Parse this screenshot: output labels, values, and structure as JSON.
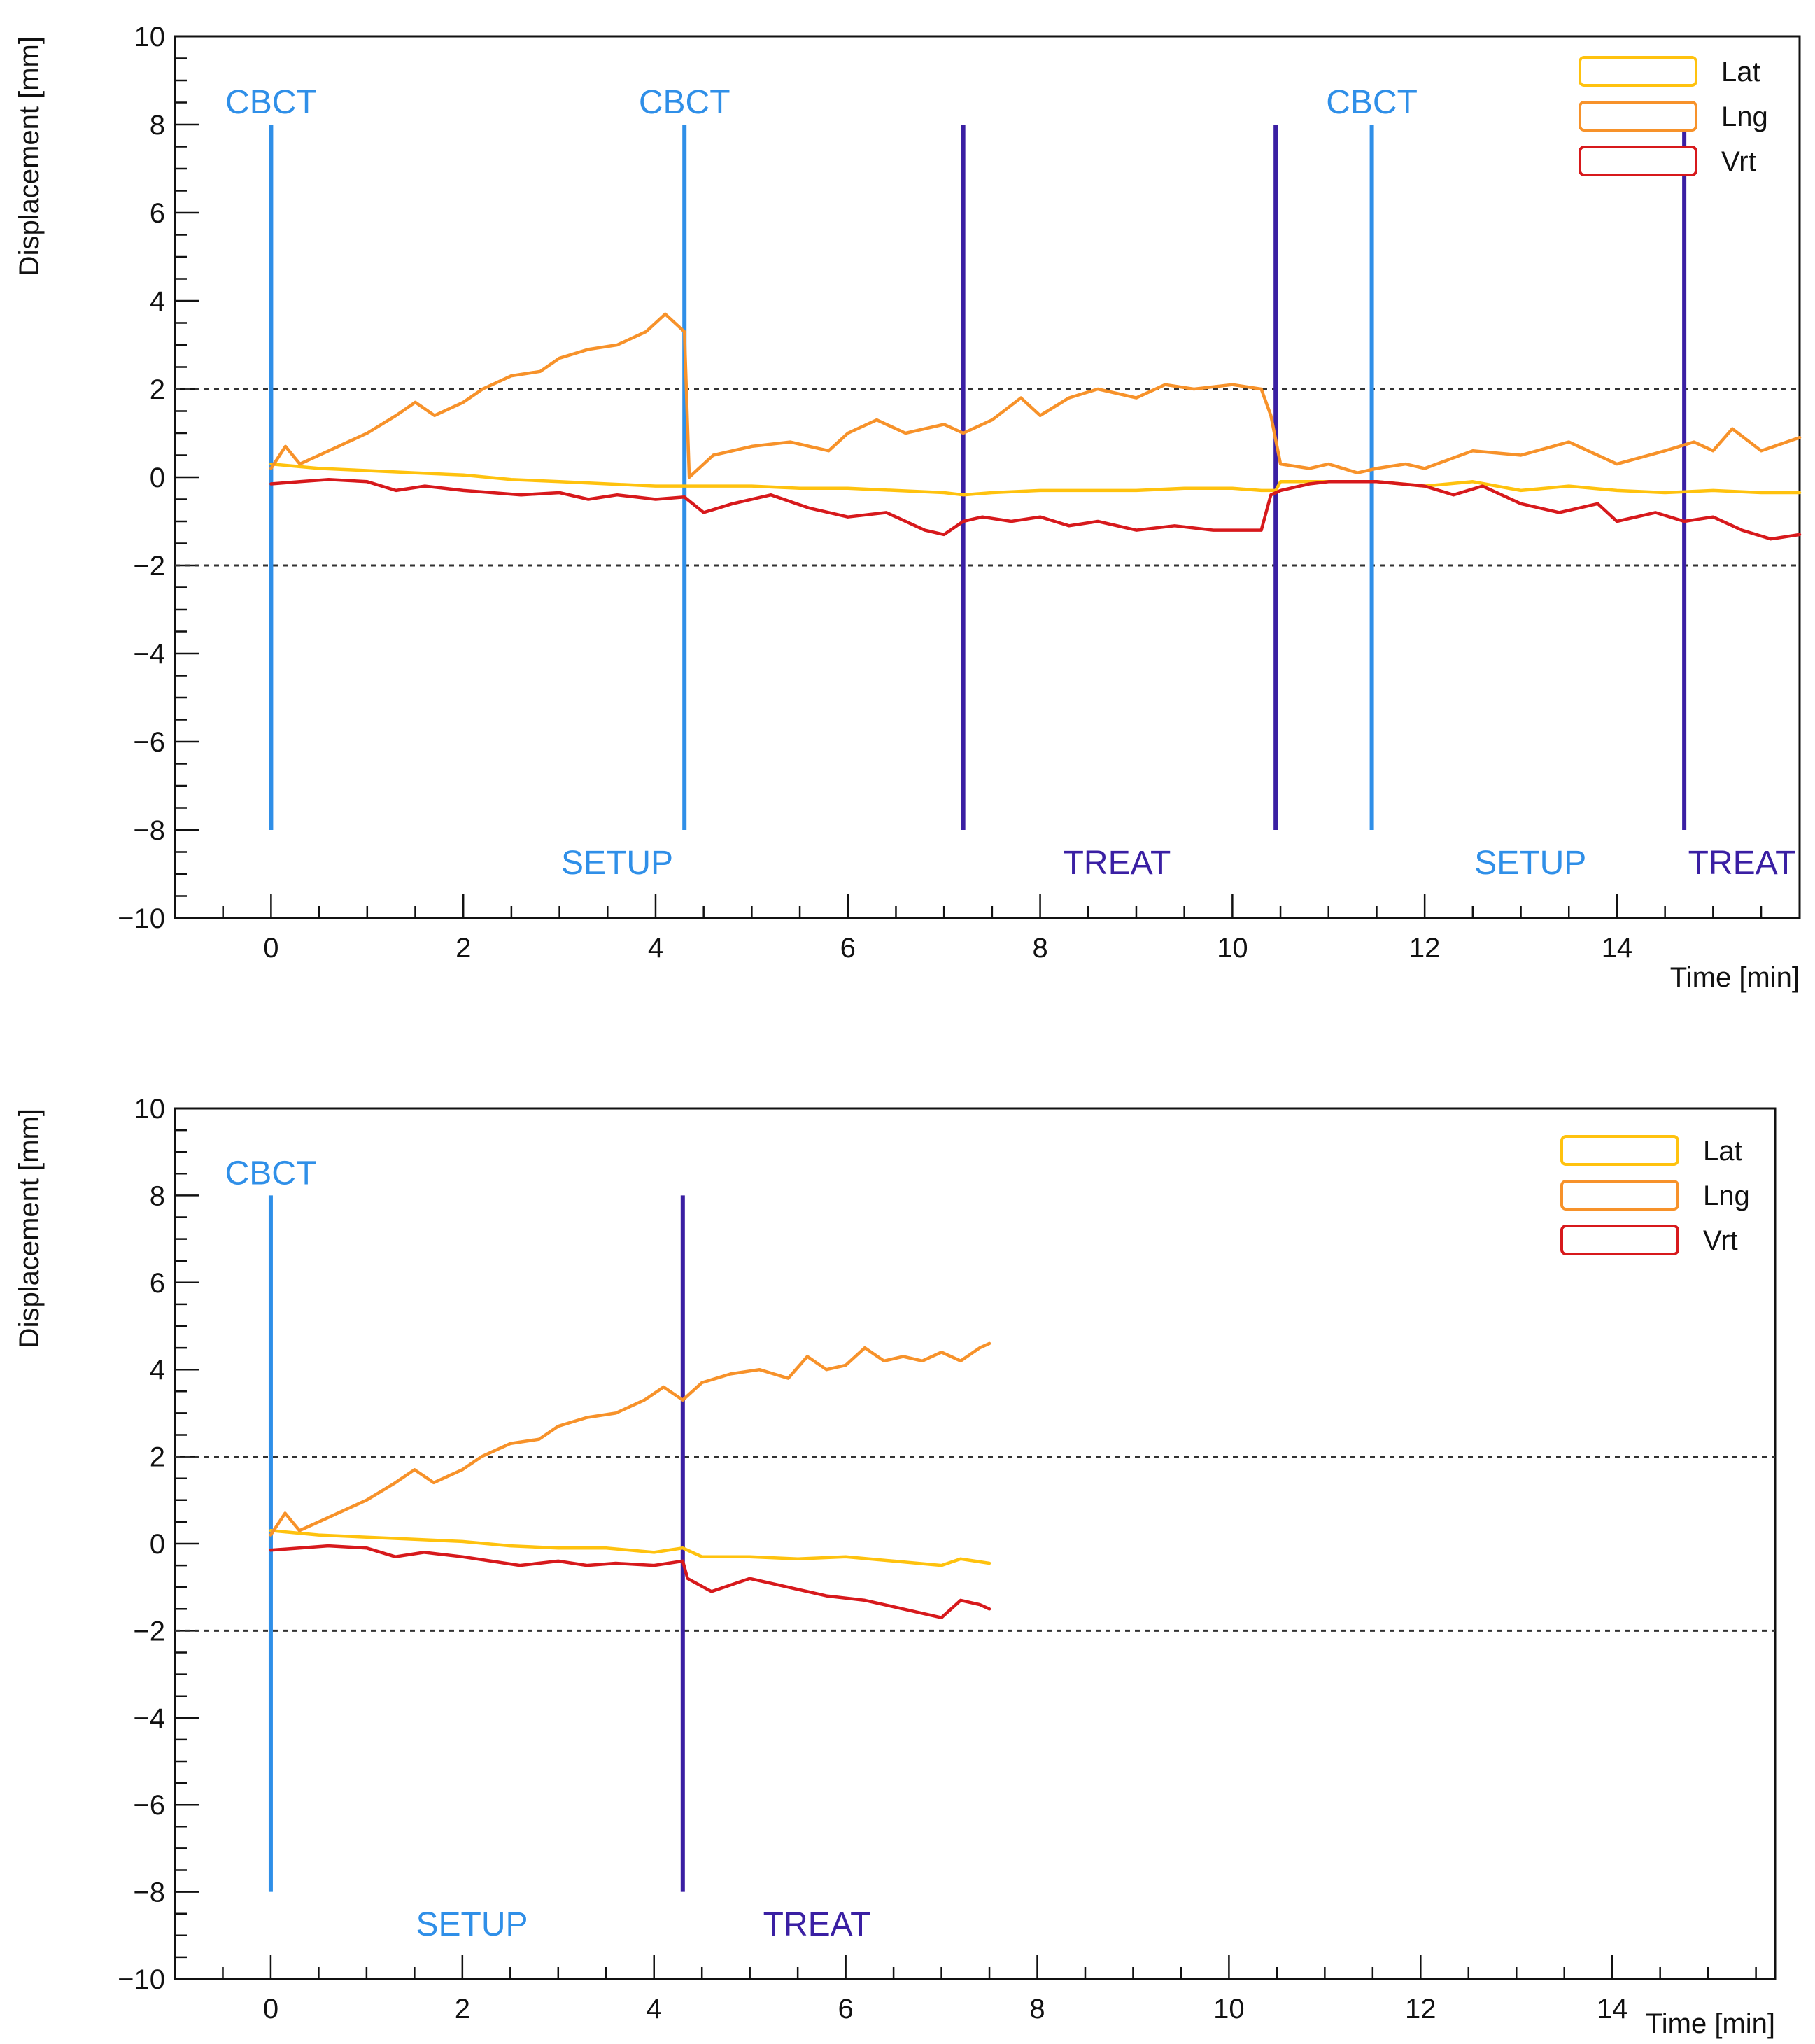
{
  "colors": {
    "lat": "#FFC20E",
    "lng": "#F7922A",
    "vrt": "#D7191C",
    "cbct_setup": "#2F8FE8",
    "treat": "#3A1FA3",
    "axis": "#111111",
    "threshold": "#333333"
  },
  "chart_data": [
    {
      "type": "line",
      "title": "",
      "xlabel": "Time [min]",
      "ylabel": "Displacement [mm]",
      "xlim": [
        -1.0,
        15.9
      ],
      "ylim": [
        -10,
        10
      ],
      "x_ticks": [
        "0",
        "2",
        "4",
        "6",
        "8",
        "10",
        "12",
        "14"
      ],
      "y_ticks": [
        "10",
        "8",
        "6",
        "4",
        "2",
        "0",
        "−2",
        "−4",
        "−6",
        "−8",
        "−10"
      ],
      "thresholds": [
        2,
        -2
      ],
      "events": [
        {
          "x": 0.0,
          "kind": "cbct",
          "label": "CBCT"
        },
        {
          "x": 4.3,
          "kind": "cbct",
          "label": "CBCT"
        },
        {
          "x": 7.2,
          "kind": "treat",
          "label": ""
        },
        {
          "x": 10.45,
          "kind": "treat",
          "label": ""
        },
        {
          "x": 11.45,
          "kind": "cbct",
          "label": "CBCT"
        },
        {
          "x": 14.7,
          "kind": "treat",
          "label": ""
        }
      ],
      "phase_labels": [
        {
          "x": 3.6,
          "kind": "cbct",
          "label": "SETUP"
        },
        {
          "x": 8.8,
          "kind": "treat",
          "label": "TREAT"
        },
        {
          "x": 13.1,
          "kind": "cbct",
          "label": "SETUP"
        },
        {
          "x": 15.3,
          "kind": "treat",
          "label": "TREAT"
        }
      ],
      "legend": [
        "Lat",
        "Lng",
        "Vrt"
      ],
      "series": [
        {
          "name": "Lat",
          "x": [
            0,
            0.5,
            1.0,
            1.5,
            2.0,
            2.5,
            3.0,
            3.5,
            4.0,
            4.3,
            4.35,
            5.0,
            5.5,
            6.0,
            6.5,
            7.0,
            7.2,
            7.5,
            8.0,
            8.5,
            9.0,
            9.5,
            10.0,
            10.3,
            10.45,
            10.5,
            11.0,
            11.5,
            12.0,
            12.5,
            13.0,
            13.5,
            14.0,
            14.5,
            15.0,
            15.5,
            15.9
          ],
          "values": [
            0.3,
            0.2,
            0.15,
            0.1,
            0.05,
            -0.05,
            -0.1,
            -0.15,
            -0.2,
            -0.2,
            -0.2,
            -0.2,
            -0.25,
            -0.25,
            -0.3,
            -0.35,
            -0.4,
            -0.35,
            -0.3,
            -0.3,
            -0.3,
            -0.25,
            -0.25,
            -0.3,
            -0.3,
            -0.1,
            -0.1,
            -0.1,
            -0.2,
            -0.1,
            -0.3,
            -0.2,
            -0.3,
            -0.35,
            -0.3,
            -0.35,
            -0.35
          ]
        },
        {
          "name": "Lng",
          "x": [
            0,
            0.15,
            0.3,
            0.5,
            0.8,
            1.0,
            1.3,
            1.5,
            1.7,
            2.0,
            2.2,
            2.5,
            2.8,
            3.0,
            3.3,
            3.6,
            3.9,
            4.1,
            4.3,
            4.35,
            4.6,
            5.0,
            5.4,
            5.8,
            6.0,
            6.3,
            6.6,
            7.0,
            7.2,
            7.5,
            7.8,
            8.0,
            8.3,
            8.6,
            9.0,
            9.3,
            9.6,
            10.0,
            10.3,
            10.4,
            10.5,
            10.8,
            11.0,
            11.3,
            11.5,
            11.8,
            12.0,
            12.5,
            13.0,
            13.5,
            14.0,
            14.5,
            14.8,
            15.0,
            15.2,
            15.5,
            15.9
          ],
          "values": [
            0.2,
            0.7,
            0.3,
            0.5,
            0.8,
            1.0,
            1.4,
            1.7,
            1.4,
            1.7,
            2.0,
            2.3,
            2.4,
            2.7,
            2.9,
            3.0,
            3.3,
            3.7,
            3.3,
            0.0,
            0.5,
            0.7,
            0.8,
            0.6,
            1.0,
            1.3,
            1.0,
            1.2,
            1.0,
            1.3,
            1.8,
            1.4,
            1.8,
            2.0,
            1.8,
            2.1,
            2.0,
            2.1,
            2.0,
            1.4,
            0.3,
            0.2,
            0.3,
            0.1,
            0.2,
            0.3,
            0.2,
            0.6,
            0.5,
            0.8,
            0.3,
            0.6,
            0.8,
            0.6,
            1.1,
            0.6,
            0.9
          ]
        },
        {
          "name": "Vrt",
          "x": [
            0,
            0.3,
            0.6,
            1.0,
            1.3,
            1.6,
            2.0,
            2.3,
            2.6,
            3.0,
            3.3,
            3.6,
            4.0,
            4.3,
            4.5,
            4.8,
            5.2,
            5.6,
            6.0,
            6.4,
            6.8,
            7.0,
            7.2,
            7.4,
            7.7,
            8.0,
            8.3,
            8.6,
            9.0,
            9.4,
            9.8,
            10.1,
            10.3,
            10.4,
            10.5,
            10.8,
            11.0,
            11.5,
            12.0,
            12.3,
            12.6,
            13.0,
            13.4,
            13.8,
            14.0,
            14.4,
            14.7,
            15.0,
            15.3,
            15.6,
            15.9
          ],
          "values": [
            -0.15,
            -0.1,
            -0.05,
            -0.1,
            -0.3,
            -0.2,
            -0.3,
            -0.35,
            -0.4,
            -0.35,
            -0.5,
            -0.4,
            -0.5,
            -0.45,
            -0.8,
            -0.6,
            -0.4,
            -0.7,
            -0.9,
            -0.8,
            -1.2,
            -1.3,
            -1.0,
            -0.9,
            -1.0,
            -0.9,
            -1.1,
            -1.0,
            -1.2,
            -1.1,
            -1.2,
            -1.2,
            -1.2,
            -0.4,
            -0.3,
            -0.15,
            -0.1,
            -0.1,
            -0.2,
            -0.4,
            -0.2,
            -0.6,
            -0.8,
            -0.6,
            -1.0,
            -0.8,
            -1.0,
            -0.9,
            -1.2,
            -1.4,
            -1.3
          ]
        }
      ]
    },
    {
      "type": "line",
      "title": "",
      "xlabel": "Time [min]",
      "ylabel": "Displacement [mm]",
      "xlim": [
        -1.0,
        15.7
      ],
      "ylim": [
        -10,
        10
      ],
      "x_ticks": [
        "0",
        "2",
        "4",
        "6",
        "8",
        "10",
        "12",
        "14"
      ],
      "y_ticks": [
        "10",
        "8",
        "6",
        "4",
        "2",
        "0",
        "−2",
        "−4",
        "−6",
        "−8",
        "−10"
      ],
      "thresholds": [
        2,
        -2
      ],
      "events": [
        {
          "x": 0.0,
          "kind": "cbct",
          "label": "CBCT"
        },
        {
          "x": 4.3,
          "kind": "treat",
          "label": ""
        }
      ],
      "phase_labels": [
        {
          "x": 2.1,
          "kind": "cbct",
          "label": "SETUP"
        },
        {
          "x": 5.7,
          "kind": "treat",
          "label": "TREAT"
        }
      ],
      "legend": [
        "Lat",
        "Lng",
        "Vrt"
      ],
      "series": [
        {
          "name": "Lat",
          "x": [
            0,
            0.5,
            1.0,
            1.5,
            2.0,
            2.5,
            3.0,
            3.5,
            4.0,
            4.3,
            4.5,
            5.0,
            5.5,
            6.0,
            6.5,
            7.0,
            7.2,
            7.5
          ],
          "values": [
            0.3,
            0.2,
            0.15,
            0.1,
            0.05,
            -0.05,
            -0.1,
            -0.1,
            -0.2,
            -0.1,
            -0.3,
            -0.3,
            -0.35,
            -0.3,
            -0.4,
            -0.5,
            -0.35,
            -0.45
          ]
        },
        {
          "name": "Lng",
          "x": [
            0,
            0.15,
            0.3,
            0.5,
            0.8,
            1.0,
            1.3,
            1.5,
            1.7,
            2.0,
            2.2,
            2.5,
            2.8,
            3.0,
            3.3,
            3.6,
            3.9,
            4.1,
            4.3,
            4.5,
            4.8,
            5.1,
            5.4,
            5.6,
            5.8,
            6.0,
            6.2,
            6.4,
            6.6,
            6.8,
            7.0,
            7.2,
            7.4,
            7.5
          ],
          "values": [
            0.2,
            0.7,
            0.3,
            0.5,
            0.8,
            1.0,
            1.4,
            1.7,
            1.4,
            1.7,
            2.0,
            2.3,
            2.4,
            2.7,
            2.9,
            3.0,
            3.3,
            3.6,
            3.3,
            3.7,
            3.9,
            4.0,
            3.8,
            4.3,
            4.0,
            4.1,
            4.5,
            4.2,
            4.3,
            4.2,
            4.4,
            4.2,
            4.5,
            4.6
          ]
        },
        {
          "name": "Vrt",
          "x": [
            0,
            0.3,
            0.6,
            1.0,
            1.3,
            1.6,
            2.0,
            2.3,
            2.6,
            3.0,
            3.3,
            3.6,
            4.0,
            4.3,
            4.35,
            4.6,
            5.0,
            5.4,
            5.8,
            6.2,
            6.6,
            7.0,
            7.2,
            7.4,
            7.5
          ],
          "values": [
            -0.15,
            -0.1,
            -0.05,
            -0.1,
            -0.3,
            -0.2,
            -0.3,
            -0.4,
            -0.5,
            -0.4,
            -0.5,
            -0.45,
            -0.5,
            -0.4,
            -0.8,
            -1.1,
            -0.8,
            -1.0,
            -1.2,
            -1.3,
            -1.5,
            -1.7,
            -1.3,
            -1.4,
            -1.5
          ]
        }
      ]
    }
  ]
}
